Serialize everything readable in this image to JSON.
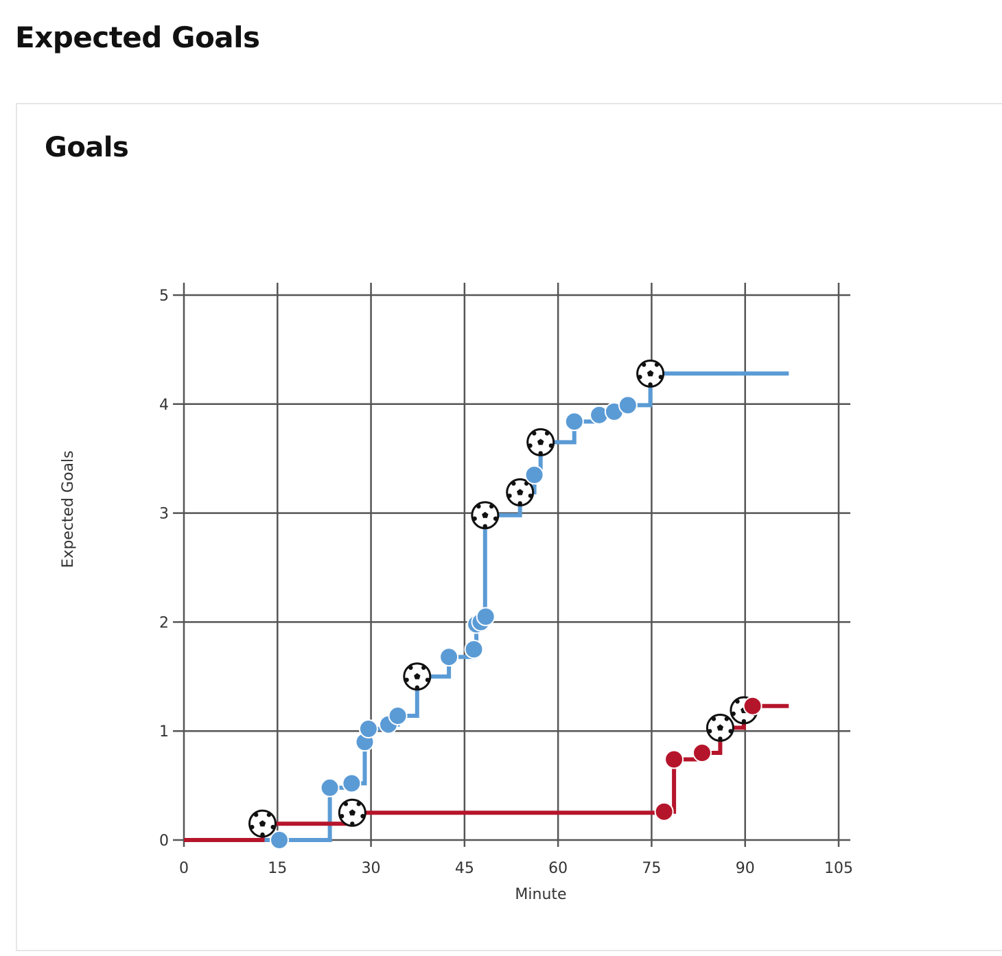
{
  "page": {
    "title": "Expected Goals"
  },
  "card": {
    "title": "Goals"
  },
  "chart_data": {
    "type": "line",
    "step": true,
    "xlabel": "Minute",
    "ylabel": "Expected Goals",
    "xlim": [
      0,
      105
    ],
    "ylim": [
      0,
      5
    ],
    "xticks": [
      0,
      15,
      30,
      45,
      60,
      75,
      90,
      105
    ],
    "yticks": [
      0,
      1,
      2,
      3,
      4,
      5
    ],
    "grid": true,
    "series": [
      {
        "color": "#5b9bd5",
        "end_x": 97,
        "shots": [
          {
            "x": 15.3,
            "y": 0.0,
            "goal": false
          },
          {
            "x": 23.4,
            "y": 0.48,
            "goal": false
          },
          {
            "x": 26.9,
            "y": 0.52,
            "goal": false
          },
          {
            "x": 29.0,
            "y": 0.9,
            "goal": false
          },
          {
            "x": 29.6,
            "y": 1.02,
            "goal": false
          },
          {
            "x": 32.8,
            "y": 1.06,
            "goal": false
          },
          {
            "x": 34.3,
            "y": 1.14,
            "goal": false
          },
          {
            "x": 37.4,
            "y": 1.5,
            "goal": true
          },
          {
            "x": 42.5,
            "y": 1.68,
            "goal": false
          },
          {
            "x": 46.5,
            "y": 1.75,
            "goal": false
          },
          {
            "x": 46.9,
            "y": 1.98,
            "goal": false
          },
          {
            "x": 47.6,
            "y": 2.0,
            "goal": false
          },
          {
            "x": 48.4,
            "y": 2.05,
            "goal": false
          },
          {
            "x": 48.3,
            "y": 2.98,
            "goal": true
          },
          {
            "x": 53.9,
            "y": 3.19,
            "goal": true
          },
          {
            "x": 56.2,
            "y": 3.35,
            "goal": false
          },
          {
            "x": 57.2,
            "y": 3.65,
            "goal": true
          },
          {
            "x": 62.6,
            "y": 3.84,
            "goal": false
          },
          {
            "x": 66.6,
            "y": 3.9,
            "goal": false
          },
          {
            "x": 69.0,
            "y": 3.93,
            "goal": false
          },
          {
            "x": 71.2,
            "y": 3.99,
            "goal": false
          },
          {
            "x": 74.8,
            "y": 4.28,
            "goal": true
          }
        ]
      },
      {
        "color": "#b5152b",
        "end_x": 97,
        "shots": [
          {
            "x": 12.6,
            "y": 0.15,
            "goal": true
          },
          {
            "x": 27.0,
            "y": 0.25,
            "goal": true
          },
          {
            "x": 77.0,
            "y": 0.26,
            "goal": false
          },
          {
            "x": 78.6,
            "y": 0.74,
            "goal": false
          },
          {
            "x": 83.1,
            "y": 0.8,
            "goal": false
          },
          {
            "x": 86.0,
            "y": 1.03,
            "goal": true
          },
          {
            "x": 89.8,
            "y": 1.19,
            "goal": true
          },
          {
            "x": 91.2,
            "y": 1.23,
            "goal": false
          }
        ]
      }
    ]
  }
}
